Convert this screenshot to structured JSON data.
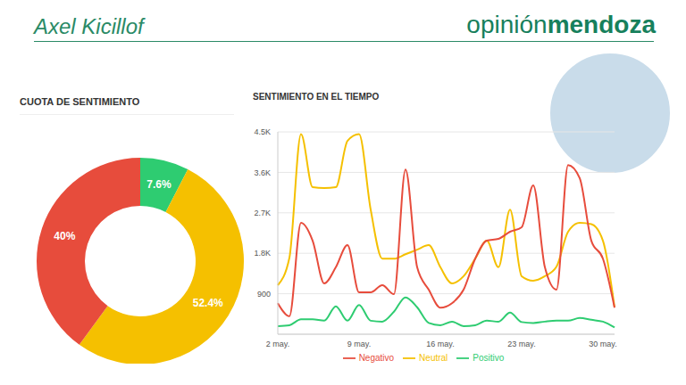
{
  "header": {
    "title": "Axel Kicillof",
    "brand": [
      "opinión",
      "mendoza"
    ]
  },
  "chart_data": [
    {
      "type": "pie",
      "title": "CUOTA DE SENTIMIENTO",
      "values": [
        7.6,
        52.4,
        40
      ],
      "value_labels": [
        "7.6%",
        "52.4%",
        "40%"
      ],
      "colors": [
        "#2ecc71",
        "#f5c000",
        "#e74c3c"
      ],
      "data_labels": true
    },
    {
      "type": "line",
      "title": "SENTIMIENTO EN EL TIEMPO",
      "categories": [
        "2 may.",
        null,
        null,
        null,
        null,
        null,
        null,
        "9 may.",
        null,
        null,
        null,
        null,
        null,
        null,
        "16 may.",
        null,
        null,
        null,
        null,
        null,
        null,
        "23 may.",
        null,
        null,
        null,
        null,
        null,
        null,
        "30 may.",
        null
      ],
      "series": [
        {
          "name": "Positivo",
          "color": "#2ecc71",
          "values": [
            180,
            200,
            330,
            330,
            300,
            620,
            300,
            650,
            300,
            280,
            500,
            820,
            600,
            250,
            200,
            280,
            180,
            200,
            300,
            280,
            480,
            270,
            250,
            280,
            300,
            300,
            360,
            320,
            280,
            150
          ]
        },
        {
          "name": "Neutral",
          "color": "#f5c000",
          "values": [
            1090,
            1700,
            4450,
            3270,
            3250,
            3270,
            4300,
            4450,
            2770,
            1680,
            1680,
            1780,
            1880,
            1980,
            1490,
            1130,
            1290,
            1680,
            2080,
            1490,
            2770,
            1290,
            1190,
            1290,
            1500,
            2280,
            2480,
            2450,
            2080,
            600
          ]
        },
        {
          "name": "Negativo",
          "color": "#e74c3c",
          "values": [
            690,
            400,
            2480,
            2080,
            1130,
            1490,
            1980,
            930,
            930,
            1090,
            890,
            3660,
            1490,
            990,
            590,
            690,
            990,
            1680,
            2080,
            2120,
            2280,
            2380,
            3310,
            1490,
            990,
            3760,
            3470,
            2080,
            1680,
            590
          ]
        }
      ],
      "ylim": [
        0,
        4500
      ],
      "yticks": [
        900,
        {
          "value": 1800,
          "label": "1.8K"
        },
        {
          "value": 2700,
          "label": "2.7K"
        },
        {
          "value": 3600,
          "label": "3.6K"
        },
        {
          "value": 4500,
          "label": "4.5K"
        }
      ],
      "grid": true,
      "legend": "bottom"
    }
  ]
}
